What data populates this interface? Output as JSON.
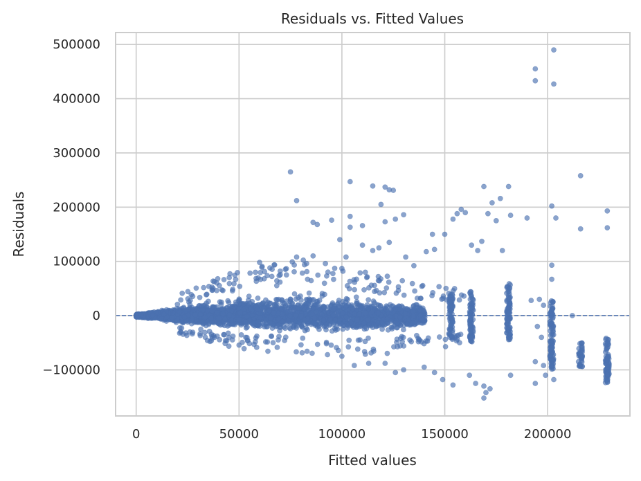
{
  "chart_data": {
    "type": "scatter",
    "title": "Residuals vs. Fitted Values",
    "xlabel": "Fitted values",
    "ylabel": "Residuals",
    "xlim": [
      -10000,
      240000
    ],
    "ylim": [
      -185000,
      522000
    ],
    "xticks": [
      0,
      50000,
      100000,
      150000,
      200000
    ],
    "yticks": [
      -100000,
      0,
      100000,
      200000,
      300000,
      400000,
      500000
    ],
    "xtick_labels": [
      "0",
      "50000",
      "100000",
      "150000",
      "200000"
    ],
    "ytick_labels": [
      "−100000",
      "0",
      "100000",
      "200000",
      "300000",
      "400000",
      "500000"
    ],
    "grid": true,
    "reference_line": {
      "y": 0,
      "style": "dashed"
    },
    "colors": {
      "points": "#4c72b0",
      "grid": "#cccccc",
      "reference": "#4c72b0"
    },
    "dense_band": {
      "x_range": [
        0,
        180000
      ],
      "x_knots": [
        0,
        20000,
        50000,
        80000,
        100000,
        120000,
        140000,
        160000,
        180000
      ],
      "y_upper": [
        4000,
        20000,
        45000,
        55000,
        50000,
        40000,
        30000,
        25000,
        20000
      ],
      "y_lower": [
        -4000,
        -18000,
        -35000,
        -40000,
        -42000,
        -40000,
        -35000,
        -30000,
        -25000
      ]
    },
    "fitted_value_clusters": [
      {
        "x": 153000,
        "y_min": -45000,
        "y_max": 40000
      },
      {
        "x": 163000,
        "y_min": -50000,
        "y_max": 45000
      },
      {
        "x": 181000,
        "y_min": -45000,
        "y_max": 60000
      },
      {
        "x": 202000,
        "y_min": -100000,
        "y_max": 30000
      },
      {
        "x": 216000,
        "y_min": -95000,
        "y_max": -50000
      },
      {
        "x": 229000,
        "y_min": -125000,
        "y_max": -40000
      }
    ],
    "points": [
      [
        75000,
        265000
      ],
      [
        78000,
        212000
      ],
      [
        104000,
        247000
      ],
      [
        115000,
        239000
      ],
      [
        121000,
        237000
      ],
      [
        123000,
        232000
      ],
      [
        125000,
        231000
      ],
      [
        119000,
        205000
      ],
      [
        86000,
        172000
      ],
      [
        88000,
        168000
      ],
      [
        95000,
        176000
      ],
      [
        104000,
        183000
      ],
      [
        104000,
        163000
      ],
      [
        110000,
        166000
      ],
      [
        121000,
        173000
      ],
      [
        126000,
        178000
      ],
      [
        130000,
        186000
      ],
      [
        144000,
        150000
      ],
      [
        99000,
        140000
      ],
      [
        110000,
        130000
      ],
      [
        115000,
        120000
      ],
      [
        118000,
        125000
      ],
      [
        123000,
        135000
      ],
      [
        102000,
        108000
      ],
      [
        86000,
        110000
      ],
      [
        92000,
        96000
      ],
      [
        78000,
        108000
      ],
      [
        60000,
        98000
      ],
      [
        65000,
        88000
      ],
      [
        70000,
        82000
      ],
      [
        131000,
        108000
      ],
      [
        135000,
        92000
      ],
      [
        141000,
        118000
      ],
      [
        145000,
        122000
      ],
      [
        150000,
        150000
      ],
      [
        156000,
        188000
      ],
      [
        158000,
        196000
      ],
      [
        160000,
        190000
      ],
      [
        154000,
        178000
      ],
      [
        166000,
        120000
      ],
      [
        163000,
        130000
      ],
      [
        168000,
        137000
      ],
      [
        169000,
        238000
      ],
      [
        171000,
        188000
      ],
      [
        173000,
        208000
      ],
      [
        177000,
        216000
      ],
      [
        181000,
        238000
      ],
      [
        182000,
        185000
      ],
      [
        175000,
        175000
      ],
      [
        178000,
        120000
      ],
      [
        190000,
        180000
      ],
      [
        194000,
        455000
      ],
      [
        194000,
        433000
      ],
      [
        203000,
        490000
      ],
      [
        203000,
        427000
      ],
      [
        202000,
        202000
      ],
      [
        204000,
        180000
      ],
      [
        202000,
        93000
      ],
      [
        202000,
        67000
      ],
      [
        216000,
        258000
      ],
      [
        216000,
        160000
      ],
      [
        229000,
        193000
      ],
      [
        229000,
        162000
      ],
      [
        212000,
        0
      ],
      [
        196000,
        30000
      ],
      [
        198000,
        19000
      ],
      [
        195000,
        -20000
      ],
      [
        197000,
        -40000
      ],
      [
        194000,
        -85000
      ],
      [
        194000,
        -125000
      ],
      [
        192000,
        28000
      ],
      [
        182000,
        -110000
      ],
      [
        169000,
        -130000
      ],
      [
        169000,
        -152000
      ],
      [
        170000,
        -142000
      ],
      [
        172000,
        -135000
      ],
      [
        165000,
        -125000
      ],
      [
        162000,
        -110000
      ],
      [
        154000,
        -128000
      ],
      [
        149000,
        -118000
      ],
      [
        145000,
        -105000
      ],
      [
        140000,
        -95000
      ],
      [
        130000,
        -100000
      ],
      [
        126000,
        -105000
      ],
      [
        121000,
        -88000
      ],
      [
        113000,
        -88000
      ],
      [
        106000,
        -92000
      ],
      [
        100000,
        -75000
      ],
      [
        93000,
        -72000
      ],
      [
        229000,
        -122000
      ],
      [
        229000,
        -108000
      ],
      [
        215000,
        -85000
      ],
      [
        203000,
        -118000
      ],
      [
        199000,
        -110000
      ],
      [
        198000,
        -92000
      ]
    ],
    "point_count_hint": "dense"
  }
}
